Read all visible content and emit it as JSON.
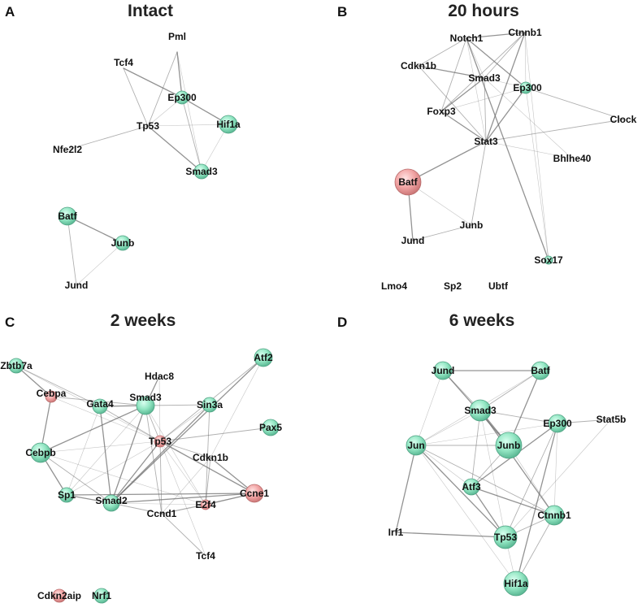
{
  "panels": [
    {
      "letter": "A",
      "title": "Intact",
      "nodes": [
        {
          "id": "Pml",
          "label": "Pml",
          "color": "none"
        },
        {
          "id": "Tcf4",
          "label": "Tcf4",
          "color": "none"
        },
        {
          "id": "Ep300",
          "label": "Ep300",
          "color": "green"
        },
        {
          "id": "Tp53",
          "label": "Tp53",
          "color": "none"
        },
        {
          "id": "Hif1a",
          "label": "Hif1a",
          "color": "green"
        },
        {
          "id": "Nfe2l2",
          "label": "Nfe2l2",
          "color": "none"
        },
        {
          "id": "Smad3",
          "label": "Smad3",
          "color": "green"
        },
        {
          "id": "Batf",
          "label": "Batf",
          "color": "green"
        },
        {
          "id": "Junb",
          "label": "Junb",
          "color": "green"
        },
        {
          "id": "Jund",
          "label": "Jund",
          "color": "none"
        }
      ],
      "edges": [
        [
          "Pml",
          "Ep300"
        ],
        [
          "Pml",
          "Tp53"
        ],
        [
          "Pml",
          "Smad3"
        ],
        [
          "Tcf4",
          "Ep300"
        ],
        [
          "Tcf4",
          "Tp53"
        ],
        [
          "Ep300",
          "Tp53"
        ],
        [
          "Ep300",
          "Hif1a"
        ],
        [
          "Ep300",
          "Smad3"
        ],
        [
          "Tp53",
          "Hif1a"
        ],
        [
          "Tp53",
          "Smad3"
        ],
        [
          "Tp53",
          "Nfe2l2"
        ],
        [
          "Hif1a",
          "Smad3"
        ],
        [
          "Batf",
          "Junb"
        ],
        [
          "Batf",
          "Jund"
        ],
        [
          "Junb",
          "Jund"
        ]
      ]
    },
    {
      "letter": "B",
      "title": "20 hours",
      "nodes": [
        {
          "id": "Notch1",
          "label": "Notch1",
          "color": "none"
        },
        {
          "id": "Ctnnb1",
          "label": "Ctnnb1",
          "color": "none"
        },
        {
          "id": "Cdkn1b",
          "label": "Cdkn1b",
          "color": "none"
        },
        {
          "id": "Smad3",
          "label": "Smad3",
          "color": "none"
        },
        {
          "id": "Ep300",
          "label": "Ep300",
          "color": "green"
        },
        {
          "id": "Foxp3",
          "label": "Foxp3",
          "color": "none"
        },
        {
          "id": "Clock",
          "label": "Clock",
          "color": "none"
        },
        {
          "id": "Stat3",
          "label": "Stat3",
          "color": "none"
        },
        {
          "id": "Bhlhe40",
          "label": "Bhlhe40",
          "color": "none"
        },
        {
          "id": "Batf",
          "label": "Batf",
          "color": "red"
        },
        {
          "id": "Junb",
          "label": "Junb",
          "color": "none"
        },
        {
          "id": "Jund",
          "label": "Jund",
          "color": "none"
        },
        {
          "id": "Sox17",
          "label": "Sox17",
          "color": "green"
        },
        {
          "id": "Lmo4",
          "label": "Lmo4",
          "color": "none"
        },
        {
          "id": "Sp2",
          "label": "Sp2",
          "color": "none"
        },
        {
          "id": "Ubtf",
          "label": "Ubtf",
          "color": "none"
        }
      ],
      "edges": [
        [
          "Notch1",
          "Ctnnb1"
        ],
        [
          "Notch1",
          "Cdkn1b"
        ],
        [
          "Notch1",
          "Smad3"
        ],
        [
          "Notch1",
          "Ep300"
        ],
        [
          "Notch1",
          "Foxp3"
        ],
        [
          "Notch1",
          "Stat3"
        ],
        [
          "Notch1",
          "Sox17"
        ],
        [
          "Ctnnb1",
          "Smad3"
        ],
        [
          "Ctnnb1",
          "Ep300"
        ],
        [
          "Ctnnb1",
          "Stat3"
        ],
        [
          "Ctnnb1",
          "Foxp3"
        ],
        [
          "Ctnnb1",
          "Sox17"
        ],
        [
          "Cdkn1b",
          "Smad3"
        ],
        [
          "Cdkn1b",
          "Stat3"
        ],
        [
          "Smad3",
          "Ep300"
        ],
        [
          "Smad3",
          "Foxp3"
        ],
        [
          "Smad3",
          "Stat3"
        ],
        [
          "Ep300",
          "Foxp3"
        ],
        [
          "Ep300",
          "Stat3"
        ],
        [
          "Ep300",
          "Clock"
        ],
        [
          "Ep300",
          "Sox17"
        ],
        [
          "Foxp3",
          "Stat3"
        ],
        [
          "Stat3",
          "Clock"
        ],
        [
          "Stat3",
          "Bhlhe40"
        ],
        [
          "Stat3",
          "Batf"
        ],
        [
          "Stat3",
          "Junb"
        ],
        [
          "Batf",
          "Junb"
        ],
        [
          "Batf",
          "Jund"
        ],
        [
          "Jund",
          "Junb"
        ],
        [
          "Smad3",
          "Bhlhe40"
        ]
      ]
    },
    {
      "letter": "C",
      "title": "2 weeks",
      "nodes": [
        {
          "id": "Zbtb7a",
          "label": "Zbtb7a",
          "color": "green"
        },
        {
          "id": "Atf2",
          "label": "Atf2",
          "color": "green"
        },
        {
          "id": "Hdac8",
          "label": "Hdac8",
          "color": "none"
        },
        {
          "id": "Cebpa",
          "label": "Cebpa",
          "color": "red"
        },
        {
          "id": "Gata4",
          "label": "Gata4",
          "color": "green"
        },
        {
          "id": "Smad3",
          "label": "Smad3",
          "color": "green"
        },
        {
          "id": "Sin3a",
          "label": "Sin3a",
          "color": "green"
        },
        {
          "id": "Pax5",
          "label": "Pax5",
          "color": "green"
        },
        {
          "id": "Tp53",
          "label": "Tp53",
          "color": "red"
        },
        {
          "id": "Cdkn1b",
          "label": "Cdkn1b",
          "color": "none"
        },
        {
          "id": "Cebpb",
          "label": "Cebpb",
          "color": "green"
        },
        {
          "id": "Sp1",
          "label": "Sp1",
          "color": "green"
        },
        {
          "id": "Smad2",
          "label": "Smad2",
          "color": "green"
        },
        {
          "id": "Ccnd1",
          "label": "Ccnd1",
          "color": "none"
        },
        {
          "id": "E2f4",
          "label": "E2f4",
          "color": "red"
        },
        {
          "id": "Ccne1",
          "label": "Ccne1",
          "color": "red"
        },
        {
          "id": "Tcf4",
          "label": "Tcf4",
          "color": "none"
        },
        {
          "id": "Cdkn2aip",
          "label": "Cdkn2aip",
          "color": "red"
        },
        {
          "id": "Nrf1",
          "label": "Nrf1",
          "color": "green"
        }
      ],
      "edges": [
        [
          "Zbtb7a",
          "Cebpa"
        ],
        [
          "Zbtb7a",
          "Gata4"
        ],
        [
          "Zbtb7a",
          "Tp53"
        ],
        [
          "Cebpa",
          "Cebpb"
        ],
        [
          "Cebpa",
          "Smad3"
        ],
        [
          "Cebpa",
          "Tp53"
        ],
        [
          "Gata4",
          "Smad3"
        ],
        [
          "Gata4",
          "Tp53"
        ],
        [
          "Gata4",
          "Sp1"
        ],
        [
          "Gata4",
          "Smad2"
        ],
        [
          "Smad3",
          "Tp53"
        ],
        [
          "Smad3",
          "Sp1"
        ],
        [
          "Smad3",
          "Smad2"
        ],
        [
          "Smad3",
          "Ccnd1"
        ],
        [
          "Smad3",
          "E2f4"
        ],
        [
          "Smad3",
          "Cebpb"
        ],
        [
          "Smad3",
          "Sin3a"
        ],
        [
          "Sin3a",
          "Tp53"
        ],
        [
          "Sin3a",
          "Smad2"
        ],
        [
          "Sin3a",
          "E2f4"
        ],
        [
          "Hdac8",
          "Tp53"
        ],
        [
          "Hdac8",
          "Smad3"
        ],
        [
          "Atf2",
          "Tp53"
        ],
        [
          "Atf2",
          "Cdkn1b"
        ],
        [
          "Atf2",
          "Smad2"
        ],
        [
          "Pax5",
          "Tp53"
        ],
        [
          "Tp53",
          "Sp1"
        ],
        [
          "Tp53",
          "Smad2"
        ],
        [
          "Tp53",
          "Ccnd1"
        ],
        [
          "Tp53",
          "E2f4"
        ],
        [
          "Tp53",
          "Ccne1"
        ],
        [
          "Tp53",
          "Cdkn1b"
        ],
        [
          "Tp53",
          "Cebpb"
        ],
        [
          "Cdkn1b",
          "Ccne1"
        ],
        [
          "Cdkn1b",
          "E2f4"
        ],
        [
          "Cdkn1b",
          "Ccnd1"
        ],
        [
          "Cebpb",
          "Sp1"
        ],
        [
          "Cebpb",
          "Smad2"
        ],
        [
          "Cebpb",
          "E2f4"
        ],
        [
          "Sp1",
          "Smad2"
        ],
        [
          "Smad2",
          "Ccnd1"
        ],
        [
          "Smad2",
          "E2f4"
        ],
        [
          "Smad2",
          "Ccne1"
        ],
        [
          "Ccnd1",
          "E2f4"
        ],
        [
          "Ccnd1",
          "Ccne1"
        ],
        [
          "E2f4",
          "Ccne1"
        ],
        [
          "Tcf4",
          "Ccnd1"
        ],
        [
          "Tcf4",
          "Tp53"
        ],
        [
          "Sp1",
          "Ccne1"
        ]
      ]
    },
    {
      "letter": "D",
      "title": "6 weeks",
      "nodes": [
        {
          "id": "Jund",
          "label": "Jund",
          "color": "green"
        },
        {
          "id": "Batf",
          "label": "Batf",
          "color": "green"
        },
        {
          "id": "Smad3",
          "label": "Smad3",
          "color": "green"
        },
        {
          "id": "Stat5b",
          "label": "Stat5b",
          "color": "none"
        },
        {
          "id": "Ep300",
          "label": "Ep300",
          "color": "green"
        },
        {
          "id": "Jun",
          "label": "Jun",
          "color": "green"
        },
        {
          "id": "Junb",
          "label": "Junb",
          "color": "green"
        },
        {
          "id": "Atf3",
          "label": "Atf3",
          "color": "green"
        },
        {
          "id": "Ctnnb1",
          "label": "Ctnnb1",
          "color": "green"
        },
        {
          "id": "Irf1",
          "label": "Irf1",
          "color": "none"
        },
        {
          "id": "Tp53",
          "label": "Tp53",
          "color": "green"
        },
        {
          "id": "Hif1a",
          "label": "Hif1a",
          "color": "green"
        }
      ],
      "edges": [
        [
          "Jund",
          "Batf"
        ],
        [
          "Jund",
          "Smad3"
        ],
        [
          "Jund",
          "Jun"
        ],
        [
          "Jund",
          "Junb"
        ],
        [
          "Batf",
          "Smad3"
        ],
        [
          "Batf",
          "Jun"
        ],
        [
          "Batf",
          "Junb"
        ],
        [
          "Smad3",
          "Ep300"
        ],
        [
          "Smad3",
          "Jun"
        ],
        [
          "Smad3",
          "Junb"
        ],
        [
          "Smad3",
          "Atf3"
        ],
        [
          "Smad3",
          "Tp53"
        ],
        [
          "Smad3",
          "Ctnnb1"
        ],
        [
          "Ep300",
          "Stat5b"
        ],
        [
          "Ep300",
          "Jun"
        ],
        [
          "Ep300",
          "Atf3"
        ],
        [
          "Ep300",
          "Tp53"
        ],
        [
          "Ep300",
          "Ctnnb1"
        ],
        [
          "Ep300",
          "Hif1a"
        ],
        [
          "Jun",
          "Junb"
        ],
        [
          "Jun",
          "Atf3"
        ],
        [
          "Jun",
          "Tp53"
        ],
        [
          "Jun",
          "Ctnnb1"
        ],
        [
          "Jun",
          "Hif1a"
        ],
        [
          "Jun",
          "Irf1"
        ],
        [
          "Junb",
          "Atf3"
        ],
        [
          "Junb",
          "Ctnnb1"
        ],
        [
          "Atf3",
          "Tp53"
        ],
        [
          "Tp53",
          "Ctnnb1"
        ],
        [
          "Tp53",
          "Hif1a"
        ],
        [
          "Tp53",
          "Irf1"
        ],
        [
          "Ctnnb1",
          "Hif1a"
        ],
        [
          "Stat5b",
          "Tp53"
        ],
        [
          "Atf3",
          "Ctnnb1"
        ]
      ]
    }
  ]
}
